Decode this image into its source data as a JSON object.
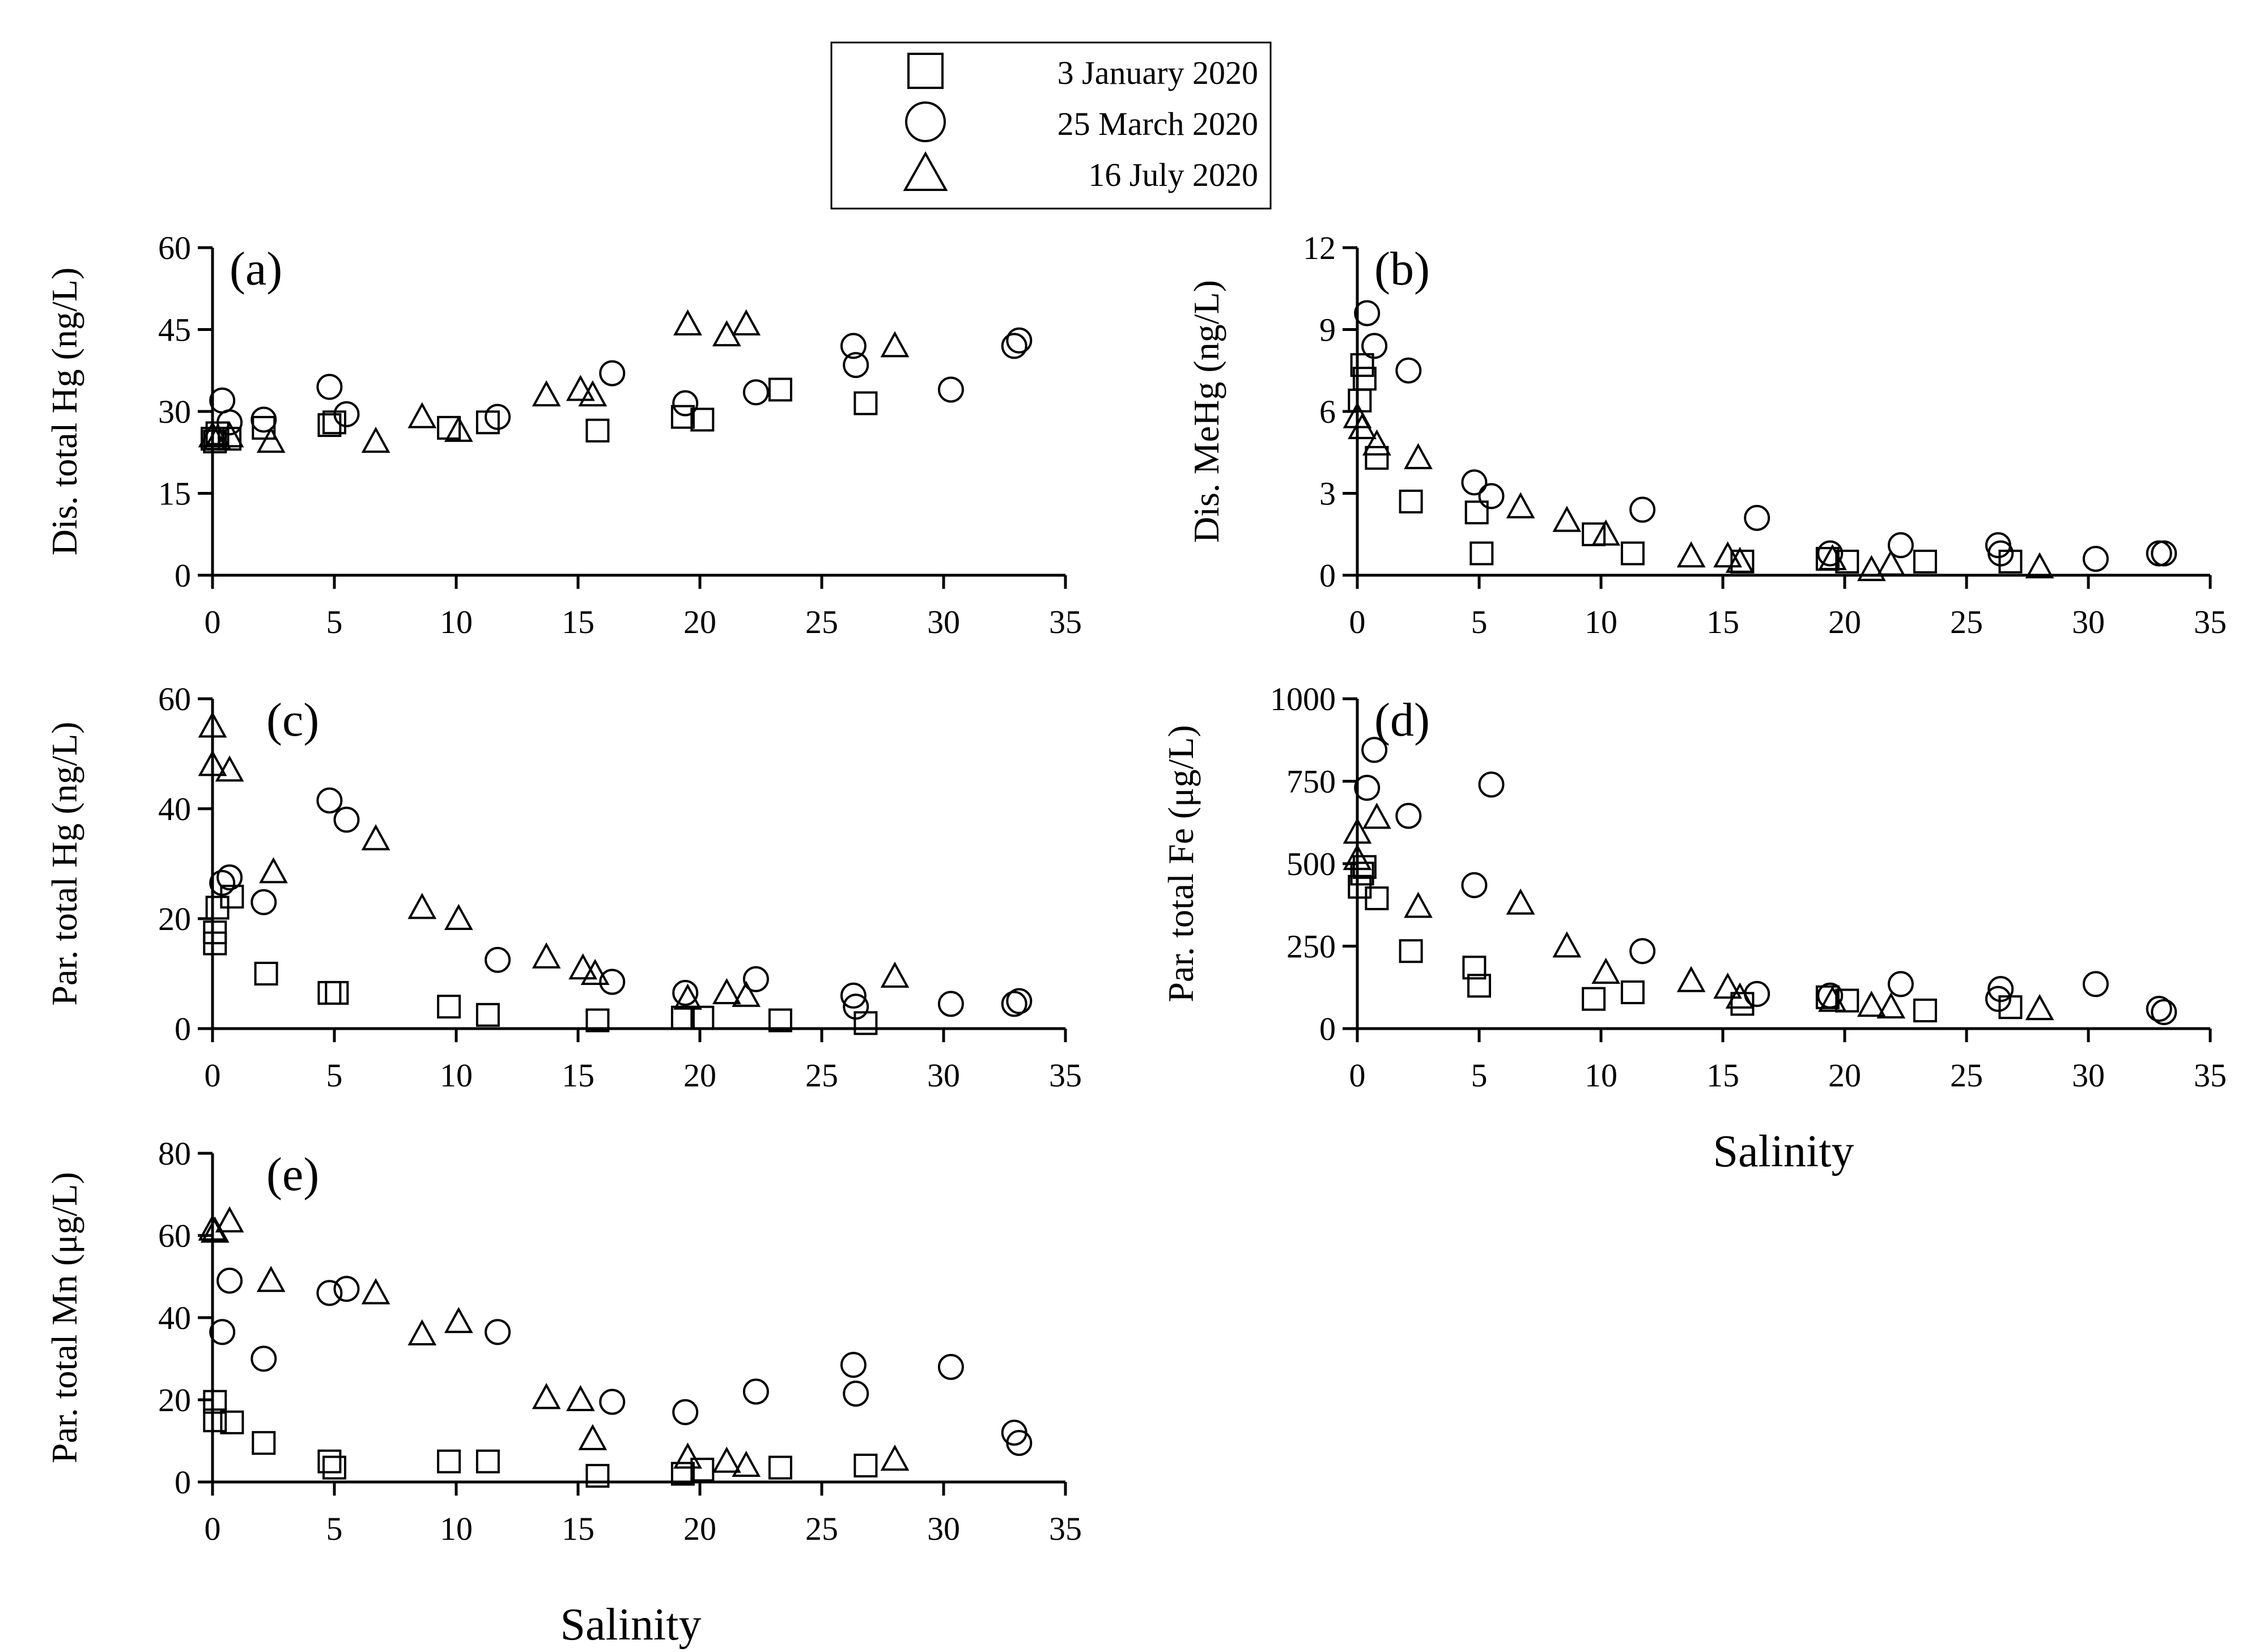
{
  "legend": {
    "items": [
      {
        "marker": "square",
        "label": "3 January 2020"
      },
      {
        "marker": "circle",
        "label": "25 March 2020"
      },
      {
        "marker": "triangle",
        "label": "16 July 2020"
      }
    ]
  },
  "shared_xlabel": "Salinity",
  "chart_data": [
    {
      "id": "a",
      "type": "scatter",
      "panel_label": "(a)",
      "ylabel": "Dis. total Hg (ng/L)",
      "xlabel": "",
      "xlim": [
        0,
        35
      ],
      "ylim": [
        0,
        60
      ],
      "xticks": [
        0,
        5,
        10,
        15,
        20,
        25,
        30,
        35
      ],
      "yticks": [
        0,
        15,
        30,
        45,
        60
      ],
      "series": [
        {
          "name": "3 January 2020",
          "marker": "square",
          "points": [
            [
              0,
              25
            ],
            [
              0.1,
              24.5
            ],
            [
              0.2,
              26
            ],
            [
              0.7,
              25
            ],
            [
              2.1,
              27
            ],
            [
              4.8,
              27.5
            ],
            [
              5,
              28
            ],
            [
              9.7,
              27
            ],
            [
              11.3,
              28
            ],
            [
              15.8,
              26.5
            ],
            [
              19.3,
              29
            ],
            [
              20.1,
              28.5
            ],
            [
              23.3,
              34
            ],
            [
              26.8,
              31.5
            ]
          ]
        },
        {
          "name": "25 March 2020",
          "marker": "circle",
          "points": [
            [
              0.4,
              32
            ],
            [
              0.7,
              28
            ],
            [
              2.1,
              28.5
            ],
            [
              4.8,
              34.5
            ],
            [
              5.5,
              29.5
            ],
            [
              11.7,
              29
            ],
            [
              16.4,
              37
            ],
            [
              19.4,
              31.5
            ],
            [
              22.3,
              33.5
            ],
            [
              26.3,
              42
            ],
            [
              26.4,
              38.5
            ],
            [
              30.3,
              34
            ],
            [
              32.9,
              42
            ],
            [
              33.1,
              43
            ]
          ]
        },
        {
          "name": "16 July 2020",
          "marker": "triangle",
          "points": [
            [
              0,
              25.5
            ],
            [
              0.2,
              25
            ],
            [
              0.7,
              25.5
            ],
            [
              2.4,
              24.5
            ],
            [
              6.7,
              24.5
            ],
            [
              8.6,
              29
            ],
            [
              10.1,
              26.5
            ],
            [
              13.7,
              33
            ],
            [
              15.1,
              34
            ],
            [
              15.6,
              33
            ],
            [
              19.5,
              46
            ],
            [
              21.1,
              44
            ],
            [
              21.9,
              46
            ],
            [
              28,
              42
            ]
          ]
        }
      ]
    },
    {
      "id": "b",
      "type": "scatter",
      "panel_label": "(b)",
      "ylabel": "Dis. MeHg (ng/L)",
      "xlabel": "",
      "xlim": [
        0,
        35
      ],
      "ylim": [
        0,
        12
      ],
      "xticks": [
        0,
        5,
        10,
        15,
        20,
        25,
        30,
        35
      ],
      "yticks": [
        0,
        3,
        6,
        9,
        12
      ],
      "series": [
        {
          "name": "3 January 2020",
          "marker": "square",
          "points": [
            [
              0.1,
              6.4
            ],
            [
              0.2,
              7.7
            ],
            [
              0.3,
              7.2
            ],
            [
              0.8,
              4.3
            ],
            [
              2.2,
              2.7
            ],
            [
              4.9,
              2.3
            ],
            [
              5.1,
              0.8
            ],
            [
              9.7,
              1.5
            ],
            [
              11.3,
              0.8
            ],
            [
              15.8,
              0.5
            ],
            [
              19.3,
              0.6
            ],
            [
              20.1,
              0.5
            ],
            [
              23.3,
              0.5
            ],
            [
              26.8,
              0.5
            ]
          ]
        },
        {
          "name": "25 March 2020",
          "marker": "circle",
          "points": [
            [
              0.4,
              9.6
            ],
            [
              0.7,
              8.4
            ],
            [
              2.1,
              7.5
            ],
            [
              4.8,
              3.4
            ],
            [
              5.5,
              2.9
            ],
            [
              11.7,
              2.4
            ],
            [
              16.4,
              2.1
            ],
            [
              19.4,
              0.8
            ],
            [
              22.3,
              1.1
            ],
            [
              26.3,
              1.1
            ],
            [
              26.4,
              0.8
            ],
            [
              30.3,
              0.6
            ],
            [
              32.9,
              0.8
            ],
            [
              33.1,
              0.8
            ]
          ]
        },
        {
          "name": "16 July 2020",
          "marker": "triangle",
          "points": [
            [
              0,
              5.8
            ],
            [
              0.2,
              5.4
            ],
            [
              0.8,
              4.8
            ],
            [
              2.5,
              4.3
            ],
            [
              6.7,
              2.5
            ],
            [
              8.6,
              2.0
            ],
            [
              10.2,
              1.5
            ],
            [
              13.7,
              0.7
            ],
            [
              15.2,
              0.7
            ],
            [
              15.7,
              0.5
            ],
            [
              19.5,
              0.6
            ],
            [
              21.1,
              0.2
            ],
            [
              21.9,
              0.4
            ],
            [
              28,
              0.3
            ]
          ]
        }
      ]
    },
    {
      "id": "c",
      "type": "scatter",
      "panel_label": "(c)",
      "ylabel": "Par. total Hg (ng/L)",
      "xlabel": "",
      "xlim": [
        0,
        35
      ],
      "ylim": [
        0,
        60
      ],
      "xticks": [
        0,
        5,
        10,
        15,
        20,
        25,
        30,
        35
      ],
      "yticks": [
        0,
        20,
        40,
        60
      ],
      "series": [
        {
          "name": "3 January 2020",
          "marker": "square",
          "points": [
            [
              0.1,
              15.5
            ],
            [
              0.1,
              17.5
            ],
            [
              0.2,
              22
            ],
            [
              0.8,
              24
            ],
            [
              2.2,
              10
            ],
            [
              4.8,
              6.5
            ],
            [
              5.1,
              6.5
            ],
            [
              9.7,
              4
            ],
            [
              11.3,
              2.5
            ],
            [
              15.8,
              1.5
            ],
            [
              19.3,
              2
            ],
            [
              20.1,
              2
            ],
            [
              23.3,
              1.5
            ],
            [
              26.8,
              1
            ]
          ]
        },
        {
          "name": "25 March 2020",
          "marker": "circle",
          "points": [
            [
              0.4,
              26.5
            ],
            [
              0.7,
              27.5
            ],
            [
              2.1,
              23
            ],
            [
              4.8,
              41.5
            ],
            [
              5.5,
              38
            ],
            [
              11.7,
              12.5
            ],
            [
              16.4,
              8.5
            ],
            [
              19.4,
              6.5
            ],
            [
              22.3,
              9
            ],
            [
              26.3,
              6
            ],
            [
              26.4,
              4
            ],
            [
              30.3,
              4.5
            ],
            [
              32.9,
              4.5
            ],
            [
              33.1,
              5
            ]
          ]
        },
        {
          "name": "16 July 2020",
          "marker": "triangle",
          "points": [
            [
              0,
              55
            ],
            [
              0,
              48
            ],
            [
              0.7,
              47
            ],
            [
              2.5,
              28.5
            ],
            [
              6.7,
              34.5
            ],
            [
              8.6,
              22
            ],
            [
              10.1,
              20
            ],
            [
              13.7,
              13
            ],
            [
              15.2,
              11
            ],
            [
              15.7,
              10
            ],
            [
              19.5,
              5.5
            ],
            [
              21.1,
              6.5
            ],
            [
              21.9,
              6
            ],
            [
              28,
              9.5
            ]
          ]
        }
      ]
    },
    {
      "id": "d",
      "type": "scatter",
      "panel_label": "(d)",
      "ylabel": "Par. total Fe (μg/L)",
      "xlabel": "Salinity",
      "xlim": [
        0,
        35
      ],
      "ylim": [
        0,
        1000
      ],
      "xticks": [
        0,
        5,
        10,
        15,
        20,
        25,
        30,
        35
      ],
      "yticks": [
        0,
        250,
        500,
        750,
        1000
      ],
      "series": [
        {
          "name": "3 January 2020",
          "marker": "square",
          "points": [
            [
              0.1,
              430
            ],
            [
              0.2,
              470
            ],
            [
              0.3,
              490
            ],
            [
              0.8,
              395
            ],
            [
              2.2,
              235
            ],
            [
              4.8,
              185
            ],
            [
              5,
              130
            ],
            [
              9.7,
              90
            ],
            [
              11.3,
              110
            ],
            [
              15.8,
              75
            ],
            [
              19.3,
              95
            ],
            [
              20.1,
              85
            ],
            [
              23.3,
              55
            ],
            [
              26.8,
              65
            ]
          ]
        },
        {
          "name": "25 March 2020",
          "marker": "circle",
          "points": [
            [
              0.4,
              730
            ],
            [
              0.7,
              845
            ],
            [
              2.1,
              645
            ],
            [
              4.8,
              435
            ],
            [
              5.5,
              740
            ],
            [
              11.7,
              235
            ],
            [
              16.4,
              105
            ],
            [
              19.4,
              100
            ],
            [
              22.3,
              135
            ],
            [
              26.3,
              90
            ],
            [
              26.4,
              120
            ],
            [
              30.3,
              135
            ],
            [
              32.9,
              60
            ],
            [
              33.1,
              50
            ]
          ]
        },
        {
          "name": "16 July 2020",
          "marker": "triangle",
          "points": [
            [
              0,
              595
            ],
            [
              0,
              515
            ],
            [
              0.8,
              640
            ],
            [
              2.5,
              370
            ],
            [
              6.7,
              380
            ],
            [
              8.6,
              250
            ],
            [
              10.2,
              170
            ],
            [
              13.7,
              145
            ],
            [
              15.2,
              125
            ],
            [
              15.7,
              95
            ],
            [
              19.5,
              85
            ],
            [
              21.1,
              70
            ],
            [
              21.9,
              65
            ],
            [
              28,
              60
            ]
          ]
        }
      ]
    },
    {
      "id": "e",
      "type": "scatter",
      "panel_label": "(e)",
      "ylabel": "Par. total Mn (μg/L)",
      "xlabel": "Salinity",
      "xlim": [
        0,
        35
      ],
      "ylim": [
        0,
        80
      ],
      "xticks": [
        0,
        5,
        10,
        15,
        20,
        25,
        30,
        35
      ],
      "yticks": [
        0,
        20,
        40,
        60,
        80
      ],
      "series": [
        {
          "name": "3 January 2020",
          "marker": "square",
          "points": [
            [
              0.1,
              19.5
            ],
            [
              0.1,
              15
            ],
            [
              0.8,
              14.5
            ],
            [
              2.1,
              9.5
            ],
            [
              4.8,
              5
            ],
            [
              5,
              3.5
            ],
            [
              9.7,
              5
            ],
            [
              11.3,
              5
            ],
            [
              15.8,
              1.5
            ],
            [
              19.3,
              2
            ],
            [
              20.1,
              3
            ],
            [
              23.3,
              3.5
            ],
            [
              26.8,
              4
            ]
          ]
        },
        {
          "name": "25 March 2020",
          "marker": "circle",
          "points": [
            [
              0.4,
              36.5
            ],
            [
              0.7,
              49
            ],
            [
              2.1,
              30
            ],
            [
              4.8,
              46
            ],
            [
              5.5,
              47
            ],
            [
              11.7,
              36.5
            ],
            [
              16.4,
              19.5
            ],
            [
              19.4,
              17
            ],
            [
              22.3,
              22
            ],
            [
              26.3,
              28.5
            ],
            [
              26.4,
              21.5
            ],
            [
              30.3,
              28
            ],
            [
              32.9,
              12
            ],
            [
              33.1,
              9.5
            ]
          ]
        },
        {
          "name": "16 July 2020",
          "marker": "triangle",
          "points": [
            [
              0,
              61.5
            ],
            [
              0.1,
              61
            ],
            [
              0.7,
              63.5
            ],
            [
              2.4,
              49
            ],
            [
              6.7,
              46
            ],
            [
              8.6,
              36
            ],
            [
              10.1,
              39
            ],
            [
              13.7,
              20.5
            ],
            [
              15.1,
              20
            ],
            [
              15.6,
              10.5
            ],
            [
              19.5,
              6
            ],
            [
              21.1,
              5
            ],
            [
              21.9,
              4
            ],
            [
              28,
              5.5
            ]
          ]
        }
      ]
    }
  ]
}
